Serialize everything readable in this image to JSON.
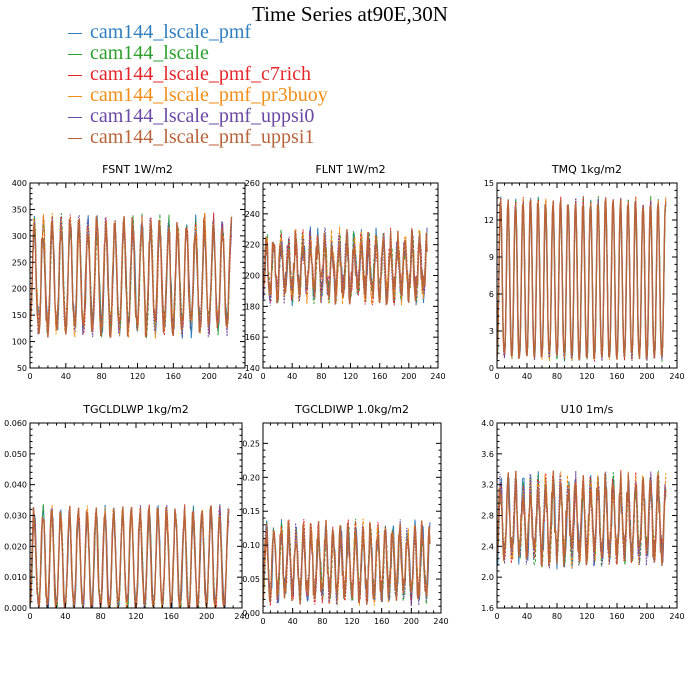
{
  "figure": {
    "title": "Time Series at90E,30N",
    "legend": [
      {
        "name": "cam144_lscale_pmf",
        "color": "#2f7fbf"
      },
      {
        "name": "cam144_lscale",
        "color": "#2ca02c"
      },
      {
        "name": "cam144_lscale_pmf_c7rich",
        "color": "#e4262a"
      },
      {
        "name": "cam144_lscale_pmf_pr3buoy",
        "color": "#f28e17"
      },
      {
        "name": "cam144_lscale_pmf_uppsi0",
        "color": "#6a48a3"
      },
      {
        "name": "cam144_lscale_pmf_uppsi1",
        "color": "#b9633a"
      }
    ]
  },
  "chart_data": [
    {
      "type": "line",
      "title": "FSNT   1W/m2",
      "xlim": [
        0,
        240
      ],
      "ylim": [
        50,
        400
      ],
      "xticks": [
        "0",
        "40",
        "80",
        "120",
        "160",
        "200",
        "240"
      ],
      "yticks": [
        "50",
        "100",
        "150",
        "200",
        "250",
        "300",
        "350",
        "400"
      ],
      "period": 10,
      "n": 225,
      "y_low": 130,
      "y_high": 320,
      "y_spread": 25
    },
    {
      "type": "line",
      "title": "FLNT   1W/m2",
      "xlim": [
        0,
        240
      ],
      "ylim": [
        140,
        260
      ],
      "xticks": [
        "0",
        "40",
        "80",
        "120",
        "160",
        "200",
        "240"
      ],
      "yticks": [
        "140",
        "160",
        "180",
        "200",
        "220",
        "240",
        "260"
      ],
      "period": 10,
      "n": 225,
      "y_low": 190,
      "y_high": 222,
      "y_spread": 10
    },
    {
      "type": "line",
      "title": "TMQ   1kg/m2",
      "xlim": [
        0,
        240
      ],
      "ylim": [
        0,
        15
      ],
      "xticks": [
        "0",
        "40",
        "80",
        "120",
        "160",
        "200",
        "240"
      ],
      "yticks": [
        "0",
        "3",
        "6",
        "9",
        "12",
        "15"
      ],
      "period": 10,
      "n": 225,
      "y_low": 0.9,
      "y_high": 13.6,
      "y_spread": 0.4
    },
    {
      "type": "line",
      "title": "TGCLDLWP   1kg/m2",
      "xlim": [
        0,
        240
      ],
      "ylim": [
        0,
        0.06
      ],
      "xticks": [
        "0",
        "40",
        "80",
        "120",
        "160",
        "200",
        "240"
      ],
      "yticks": [
        "0.000",
        "0.010",
        "0.020",
        "0.030",
        "0.040",
        "0.050",
        "0.060"
      ],
      "period": 10,
      "n": 225,
      "y_low": 0.0005,
      "y_high": 0.031,
      "y_spread": 0.003
    },
    {
      "type": "line",
      "title": "TGCLDIWP   1.0kg/m2",
      "xlim": [
        0,
        240
      ],
      "ylim": [
        0,
        0.28
      ],
      "xticks": [
        "0",
        "40",
        "80",
        "120",
        "160",
        "200",
        "240"
      ],
      "yticks": [
        "0.00",
        "0.05",
        "0.10",
        "0.15",
        "0.20",
        "0.25"
      ],
      "period": 10,
      "n": 225,
      "y_low": 0.03,
      "y_high": 0.12,
      "y_spread": 0.02
    },
    {
      "type": "line",
      "title": "U10   1m/s",
      "xlim": [
        0,
        240
      ],
      "ylim": [
        1.6,
        4.0
      ],
      "xticks": [
        "0",
        "40",
        "80",
        "120",
        "160",
        "200",
        "240"
      ],
      "yticks": [
        "1.6",
        "2.0",
        "2.4",
        "2.8",
        "3.2",
        "3.6",
        "4.0"
      ],
      "period": 10,
      "n": 225,
      "y_low": 2.3,
      "y_high": 3.2,
      "y_spread": 0.2
    }
  ]
}
